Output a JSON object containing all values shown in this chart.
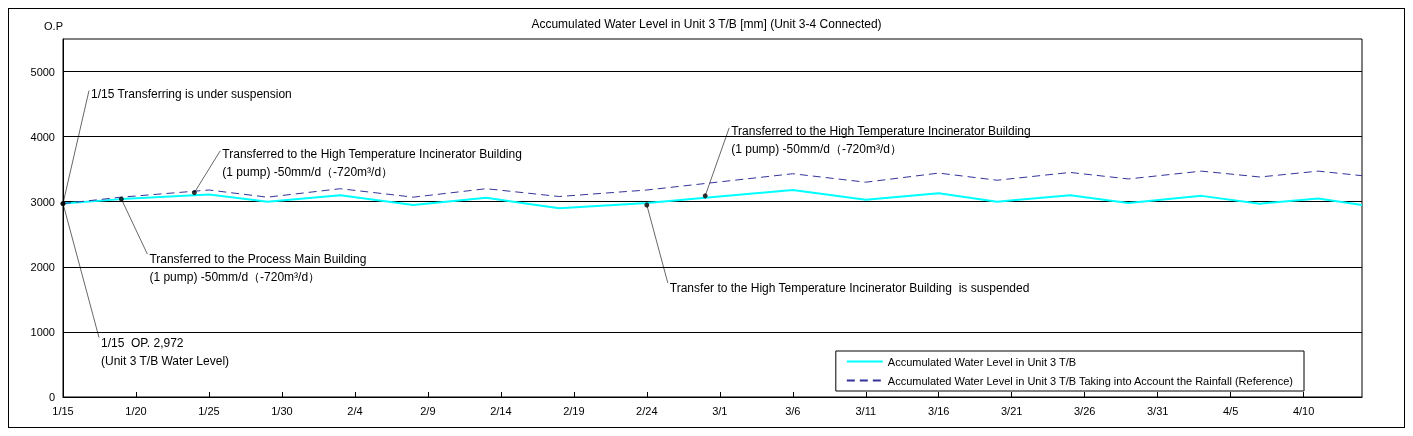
{
  "chart_data": {
    "type": "line",
    "title": "Accumulated Water Level in Unit 3 T/B [mm] (Unit 3-4 Connected)",
    "ylabel": "O.P",
    "x": [
      "--01-15",
      "--01-19",
      "--01-25",
      "--01-29",
      "--02-03",
      "--02-08",
      "--02-13",
      "--02-18",
      "--02-24",
      "--03-06",
      "--03-11",
      "--03-16",
      "--03-20",
      "--03-25",
      "--03-29",
      "--04-03",
      "--04-07",
      "--04-11",
      "--04-14"
    ],
    "series": [
      {
        "name": "Accumulated Water Level in Unit 3 T/B",
        "color": "#00ffff",
        "line_style": "solid",
        "values": [
          2972,
          3040,
          3110,
          3000,
          3100,
          2950,
          3060,
          2900,
          2980,
          3180,
          3030,
          3130,
          3000,
          3100,
          2980,
          3090,
          2970,
          3050,
          2950
        ]
      },
      {
        "name": "Accumulated Water Level in Unit 3 T/B Taking into Account the Rainfall (Reference)",
        "color": "#333399",
        "line_style": "dashed",
        "values": [
          2972,
          3070,
          3180,
          3070,
          3200,
          3070,
          3200,
          3080,
          3180,
          3430,
          3300,
          3440,
          3330,
          3450,
          3350,
          3470,
          3380,
          3470,
          3400
        ]
      }
    ],
    "xlim": [
      "--01-15",
      "--04-14"
    ],
    "xticks": [
      {
        "value": "--01-15",
        "label": "1/15"
      },
      {
        "value": "--01-20",
        "label": "1/20"
      },
      {
        "value": "--01-25",
        "label": "1/25"
      },
      {
        "value": "--01-30",
        "label": "1/30"
      },
      {
        "value": "--02-04",
        "label": "2/4"
      },
      {
        "value": "--02-09",
        "label": "2/9"
      },
      {
        "value": "--02-14",
        "label": "2/14"
      },
      {
        "value": "--02-19",
        "label": "2/19"
      },
      {
        "value": "--02-24",
        "label": "2/24"
      },
      {
        "value": "--03-01",
        "label": "3/1"
      },
      {
        "value": "--03-06",
        "label": "3/6"
      },
      {
        "value": "--03-11",
        "label": "3/11"
      },
      {
        "value": "--03-16",
        "label": "3/16"
      },
      {
        "value": "--03-21",
        "label": "3/21"
      },
      {
        "value": "--03-26",
        "label": "3/26"
      },
      {
        "value": "--03-31",
        "label": "3/31"
      },
      {
        "value": "--04-05",
        "label": "4/5"
      },
      {
        "value": "--04-10",
        "label": "4/10"
      }
    ],
    "ylim": [
      0,
      5500
    ],
    "yticks": [
      0,
      1000,
      2000,
      3000,
      4000,
      5000
    ],
    "grid": "y",
    "legend": "bottom right",
    "marker": "none",
    "annotations": [
      {
        "text": "1/15 Transferring is under suspension",
        "x": "--01-15",
        "y": 2972
      },
      {
        "text": "1/15  OP. 2,972\n(Unit 3 T/B Water Level)",
        "x": "--01-15",
        "y": 2972
      },
      {
        "text": "Transferred to the Process Main Building\n(1 pump) -50mm/d（-720m³/d）",
        "x": "--01-19",
        "y": 3040
      },
      {
        "text": "Transferred to the High Temperature Incinerator Building\n(1 pump) -50mm/d（-720m³/d）",
        "x": "--01-24",
        "y": 3140
      },
      {
        "text": "Transfer to the High Temperature Incinerator Building  is suspended",
        "x": "--02-24",
        "y": 2950
      },
      {
        "text": "Transferred to the High Temperature Incinerator Building\n(1 pump) -50mm/d（-720m³/d）",
        "x": "--02-28",
        "y": 3090
      }
    ]
  }
}
